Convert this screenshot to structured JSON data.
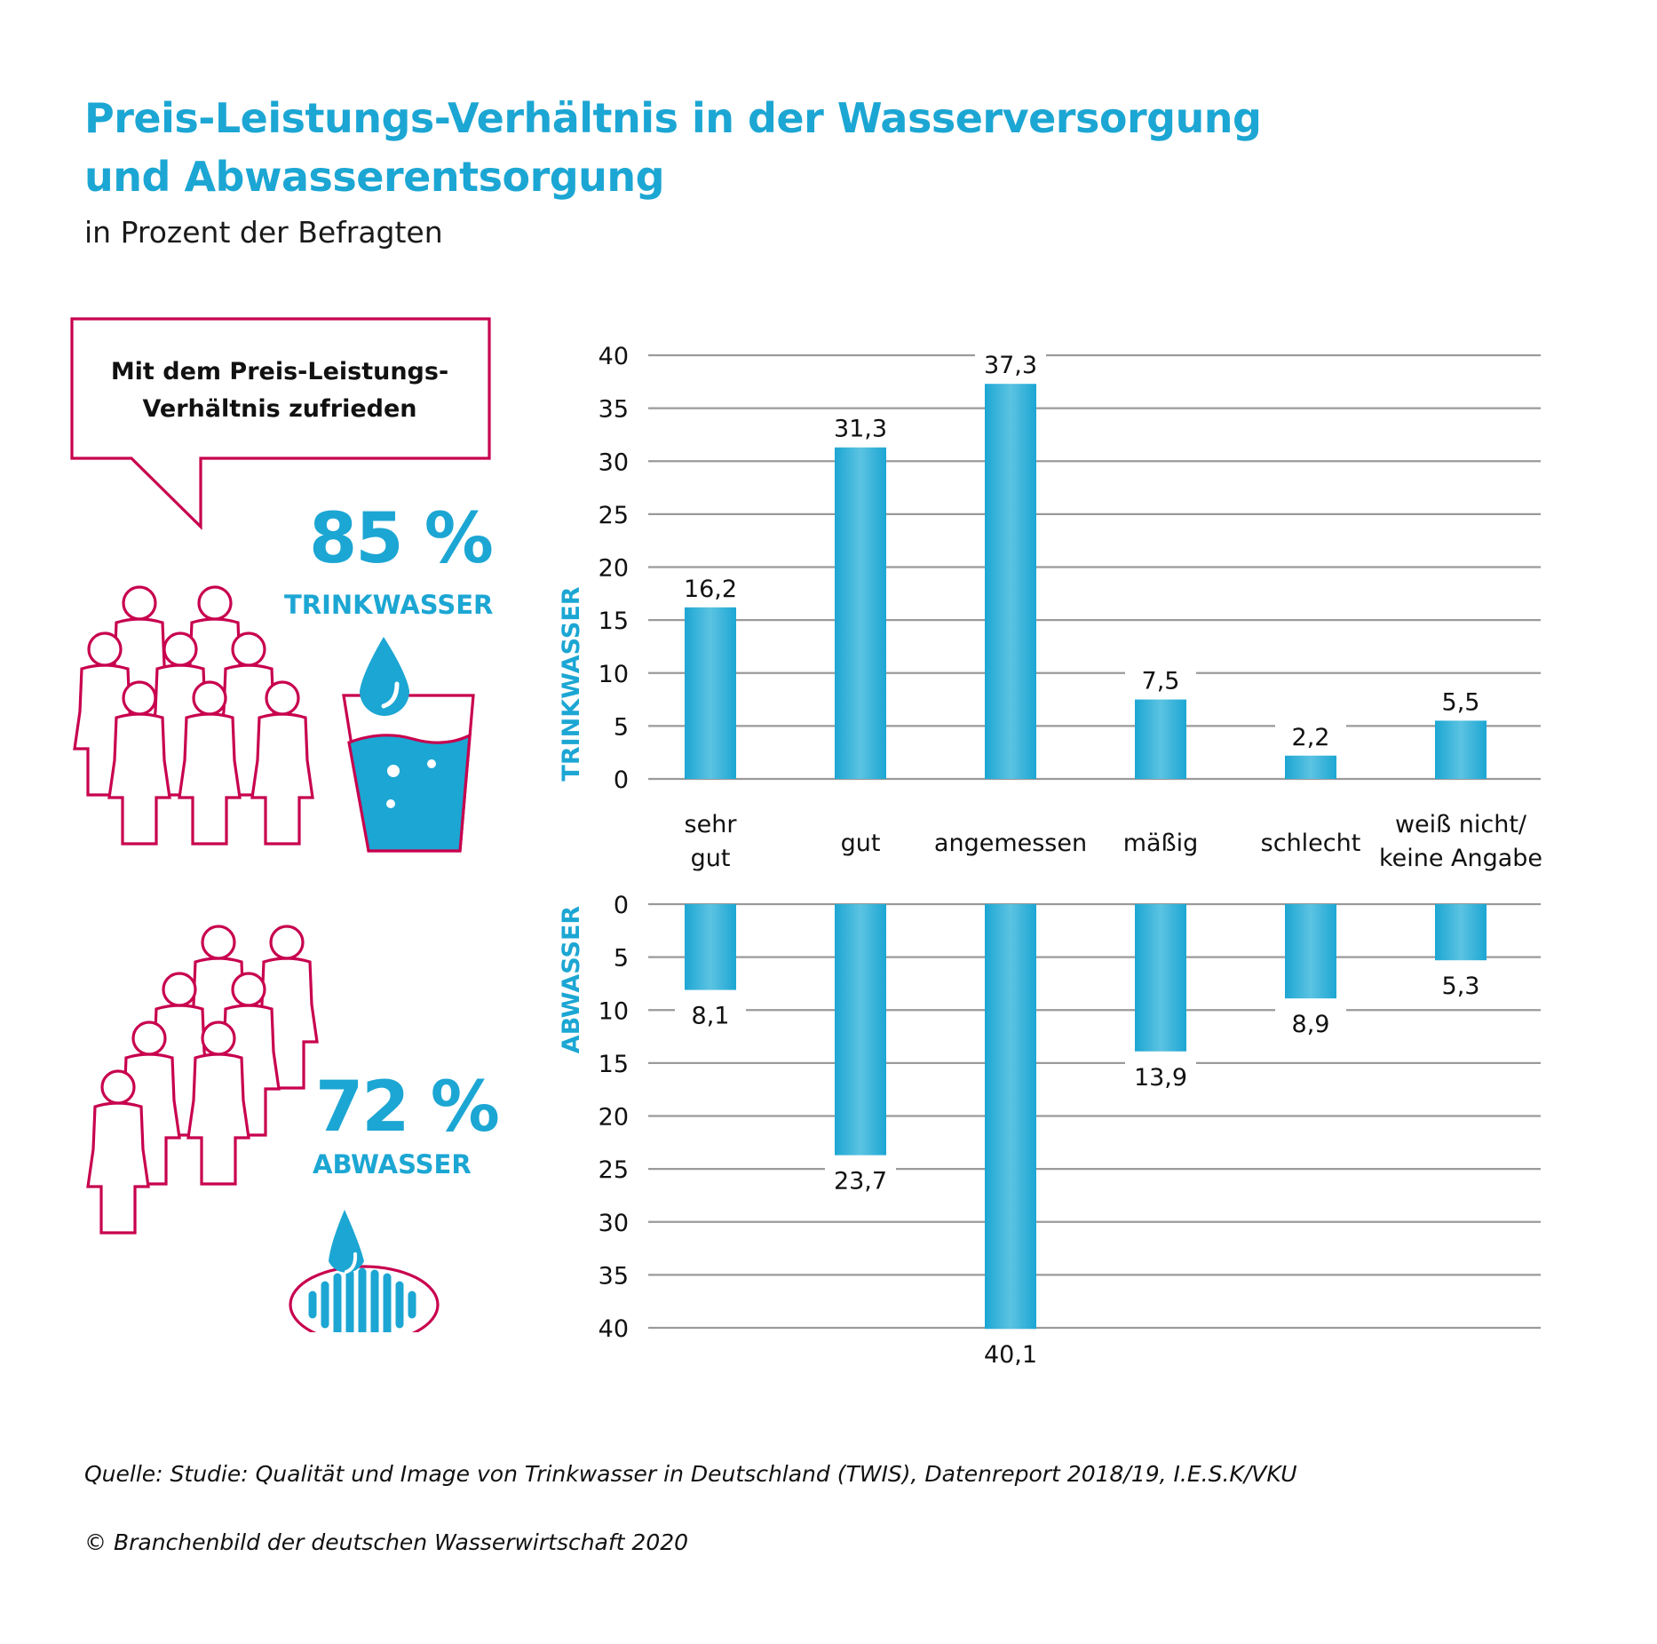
{
  "header": {
    "title_line1": "Preis-Leistungs-Verhältnis in der Wasserversorgung",
    "title_line2": "und Abwasserentsorgung",
    "subtitle": "in Prozent der Befragten"
  },
  "infographic": {
    "bubble_line1": "Mit dem Preis-Leistungs-",
    "bubble_line2": "Verhältnis zufrieden",
    "trinkwasser": {
      "percent": "85 %",
      "label": "TRINKWASSER",
      "icon": "water-glass-icon"
    },
    "abwasser": {
      "percent": "72 %",
      "label": "ABWASSER",
      "icon": "drain-icon"
    },
    "people_icon": "people-group-icon"
  },
  "colors": {
    "accent": "#1ca6d3",
    "bar_light": "#5cc3e2",
    "outline": "#c8004e",
    "grid": "#9a9a9a"
  },
  "chart_data": {
    "type": "bar",
    "title": "Preis-Leistungs-Verhältnis in der Wasserversorgung und Abwasserentsorgung",
    "subtitle": "in Prozent der Befragten",
    "categories": [
      [
        "sehr",
        "gut"
      ],
      [
        "gut"
      ],
      [
        "angemessen"
      ],
      [
        "mäßig"
      ],
      [
        "schlecht"
      ],
      [
        "weiß nicht/",
        "keine Angabe"
      ]
    ],
    "series": [
      {
        "name": "TRINKWASSER",
        "orientation": "up",
        "values": [
          16.2,
          31.3,
          37.3,
          7.5,
          2.2,
          5.5
        ],
        "labels": [
          "16,2",
          "31,3",
          "37,3",
          "7,5",
          "2,2",
          "5,5"
        ]
      },
      {
        "name": "ABWASSER",
        "orientation": "down",
        "values": [
          8.1,
          23.7,
          40.1,
          13.9,
          8.9,
          5.3
        ],
        "labels": [
          "8,1",
          "23,7",
          "40,1",
          "13,9",
          "8,9",
          "5,3"
        ]
      }
    ],
    "yticks": [
      0,
      5,
      10,
      15,
      20,
      25,
      30,
      35,
      40
    ],
    "ylim": [
      0,
      40
    ],
    "ylabel_top": "TRINKWASSER",
    "ylabel_bottom": "ABWASSER",
    "grid": true
  },
  "footer": {
    "source": "Quelle: Studie: Qualität und Image von Trinkwasser in Deutschland (TWIS), Datenreport 2018/19, I.E.S.K/VKU",
    "copyright": "© Branchenbild der deutschen Wasserwirtschaft 2020"
  }
}
